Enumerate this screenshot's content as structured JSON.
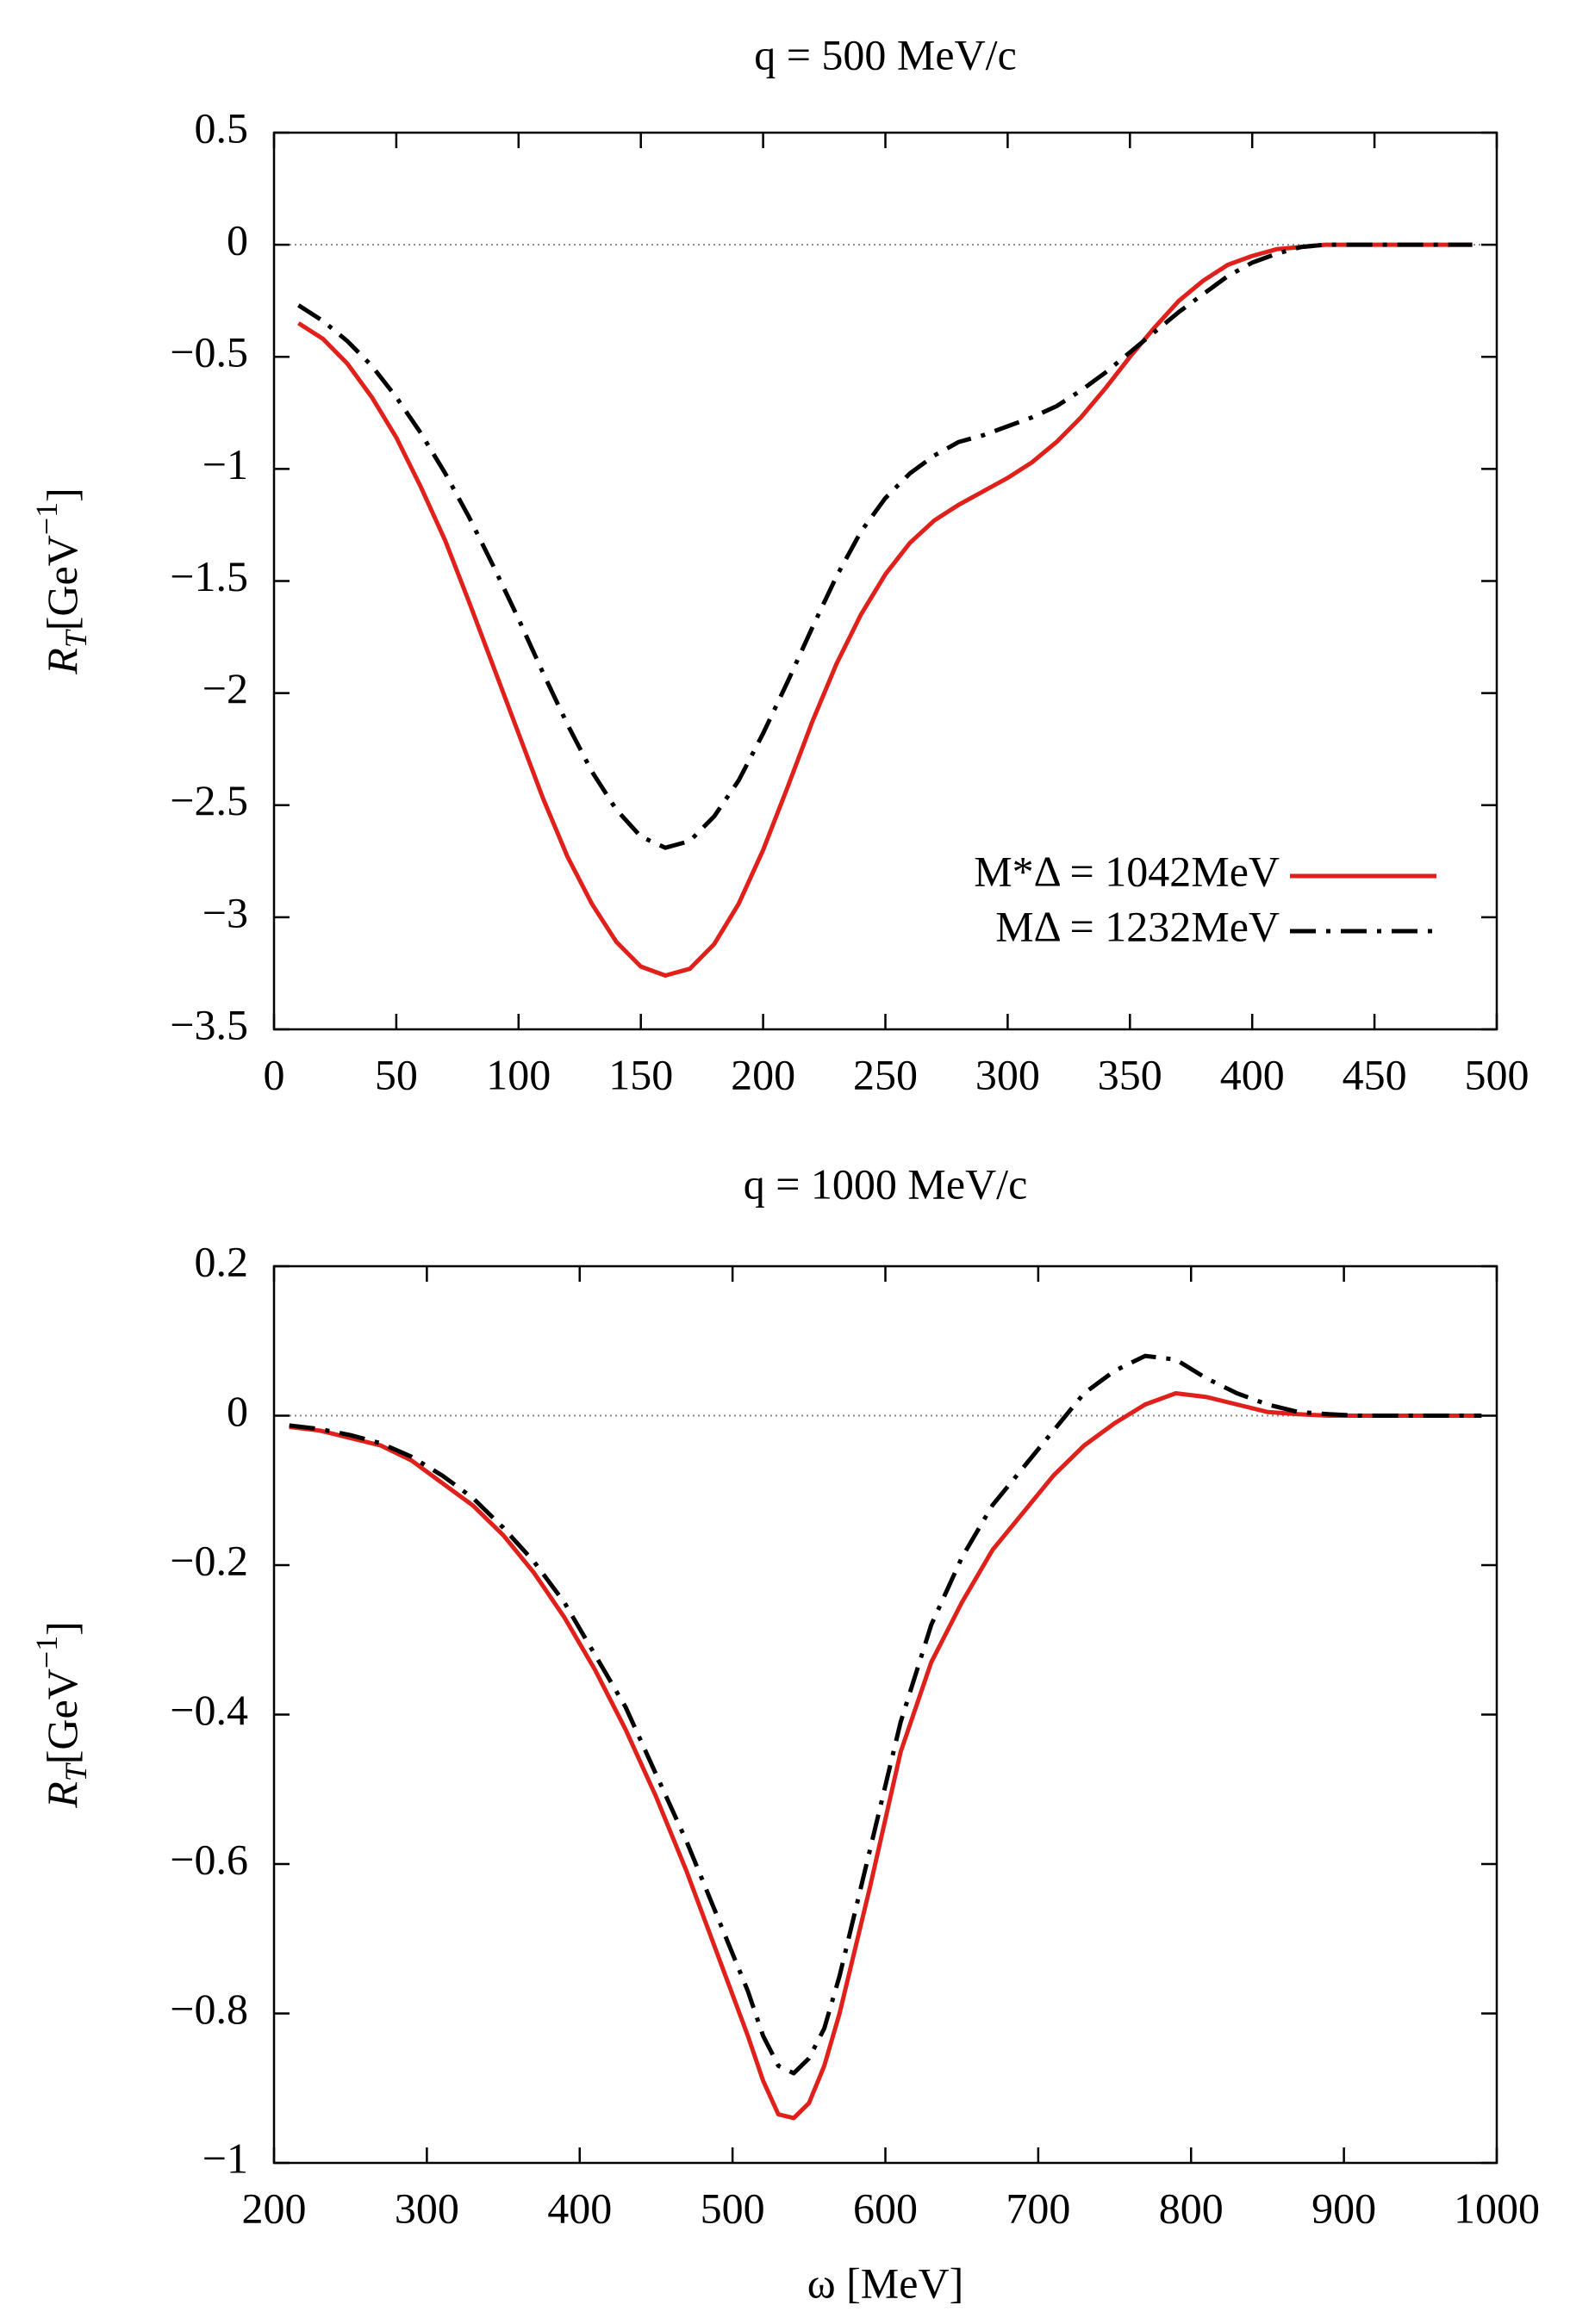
{
  "chart_data": [
    {
      "type": "line",
      "title": "q = 500 MeV/c",
      "ylabel": [
        "R",
        "T",
        "[GeV",
        "−1",
        "]"
      ],
      "x": [
        10,
        20,
        30,
        40,
        50,
        60,
        70,
        80,
        90,
        100,
        110,
        120,
        130,
        140,
        150,
        160,
        170,
        180,
        190,
        200,
        210,
        220,
        230,
        240,
        250,
        260,
        270,
        280,
        290,
        300,
        310,
        320,
        330,
        340,
        350,
        360,
        370,
        380,
        390,
        400,
        410,
        420,
        430,
        440,
        450,
        460,
        470,
        480,
        490
      ],
      "series": [
        {
          "name": "M*Δ = 1042MeV",
          "color": "#e0201b",
          "dash": "solid",
          "values": [
            -0.35,
            -0.42,
            -0.53,
            -0.68,
            -0.86,
            -1.08,
            -1.32,
            -1.6,
            -1.89,
            -2.18,
            -2.47,
            -2.73,
            -2.94,
            -3.11,
            -3.22,
            -3.26,
            -3.23,
            -3.12,
            -2.94,
            -2.7,
            -2.42,
            -2.13,
            -1.87,
            -1.65,
            -1.47,
            -1.33,
            -1.23,
            -1.16,
            -1.1,
            -1.04,
            -0.97,
            -0.88,
            -0.77,
            -0.64,
            -0.5,
            -0.37,
            -0.25,
            -0.16,
            -0.09,
            -0.05,
            -0.02,
            -0.01,
            0,
            0,
            0,
            0,
            0,
            0,
            0
          ]
        },
        {
          "name": "MΔ = 1232MeV",
          "color": "#000000",
          "dash": "dash-dot",
          "values": [
            -0.27,
            -0.34,
            -0.43,
            -0.54,
            -0.68,
            -0.84,
            -1.02,
            -1.22,
            -1.44,
            -1.67,
            -1.91,
            -2.14,
            -2.35,
            -2.52,
            -2.64,
            -2.69,
            -2.66,
            -2.55,
            -2.39,
            -2.18,
            -1.95,
            -1.71,
            -1.48,
            -1.28,
            -1.13,
            -1.02,
            -0.94,
            -0.88,
            -0.85,
            -0.81,
            -0.77,
            -0.72,
            -0.65,
            -0.57,
            -0.48,
            -0.39,
            -0.3,
            -0.22,
            -0.14,
            -0.08,
            -0.04,
            -0.01,
            0,
            0,
            0,
            0,
            0,
            0,
            0
          ]
        }
      ],
      "xlim": [
        0,
        500
      ],
      "xticks": [
        0,
        50,
        100,
        150,
        200,
        250,
        300,
        350,
        400,
        450,
        500
      ],
      "ylim": [
        -3.5,
        0.5
      ],
      "yticks": [
        {
          "value": -3.5,
          "label": "−3.5"
        },
        {
          "value": -3,
          "label": "−3"
        },
        {
          "value": -2.5,
          "label": "−2.5"
        },
        {
          "value": -2,
          "label": "−2"
        },
        {
          "value": -1.5,
          "label": "−1.5"
        },
        {
          "value": -1,
          "label": "−1"
        },
        {
          "value": -0.5,
          "label": "−0.5"
        },
        0,
        0.5
      ],
      "zero_line": 0,
      "legend": "lower right"
    },
    {
      "type": "line",
      "title": "q = 1000 MeV/c",
      "ylabel": [
        "R",
        "T",
        "[GeV",
        "−1",
        "]"
      ],
      "xlabel": "ω [MeV]",
      "x": [
        210,
        230,
        250,
        270,
        290,
        310,
        330,
        350,
        370,
        390,
        410,
        430,
        450,
        470,
        490,
        510,
        520,
        530,
        540,
        550,
        560,
        570,
        590,
        610,
        630,
        650,
        670,
        690,
        710,
        730,
        750,
        770,
        790,
        810,
        830,
        850,
        870,
        890,
        910,
        930,
        950,
        970,
        990
      ],
      "series": [
        {
          "color": "#e0201b",
          "dash": "solid",
          "values": [
            -0.015,
            -0.02,
            -0.03,
            -0.04,
            -0.06,
            -0.09,
            -0.12,
            -0.16,
            -0.21,
            -0.27,
            -0.34,
            -0.42,
            -0.51,
            -0.61,
            -0.72,
            -0.83,
            -0.89,
            -0.935,
            -0.94,
            -0.92,
            -0.87,
            -0.8,
            -0.63,
            -0.45,
            -0.33,
            -0.25,
            -0.18,
            -0.13,
            -0.08,
            -0.04,
            -0.01,
            0.015,
            0.03,
            0.025,
            0.015,
            0.005,
            0.002,
            0,
            0,
            0,
            0,
            0,
            0
          ]
        },
        {
          "color": "#000000",
          "dash": "dash-dot",
          "values": [
            -0.013,
            -0.018,
            -0.026,
            -0.037,
            -0.055,
            -0.08,
            -0.11,
            -0.15,
            -0.195,
            -0.25,
            -0.32,
            -0.39,
            -0.48,
            -0.57,
            -0.67,
            -0.77,
            -0.83,
            -0.87,
            -0.88,
            -0.86,
            -0.82,
            -0.75,
            -0.58,
            -0.41,
            -0.28,
            -0.19,
            -0.12,
            -0.07,
            -0.02,
            0.03,
            0.06,
            0.08,
            0.075,
            0.05,
            0.03,
            0.015,
            0.005,
            0.002,
            0,
            0,
            0,
            0,
            0
          ]
        }
      ],
      "xlim": [
        200,
        1000
      ],
      "xticks": [
        200,
        300,
        400,
        500,
        600,
        700,
        800,
        900,
        1000
      ],
      "ylim": [
        -1,
        0.2
      ],
      "yticks": [
        {
          "value": -1,
          "label": "−1"
        },
        {
          "value": -0.8,
          "label": "−0.8"
        },
        {
          "value": -0.6,
          "label": "−0.6"
        },
        {
          "value": -0.4,
          "label": "−0.4"
        },
        {
          "value": -0.2,
          "label": "−0.2"
        },
        0,
        0.2
      ],
      "zero_line": 0
    }
  ]
}
